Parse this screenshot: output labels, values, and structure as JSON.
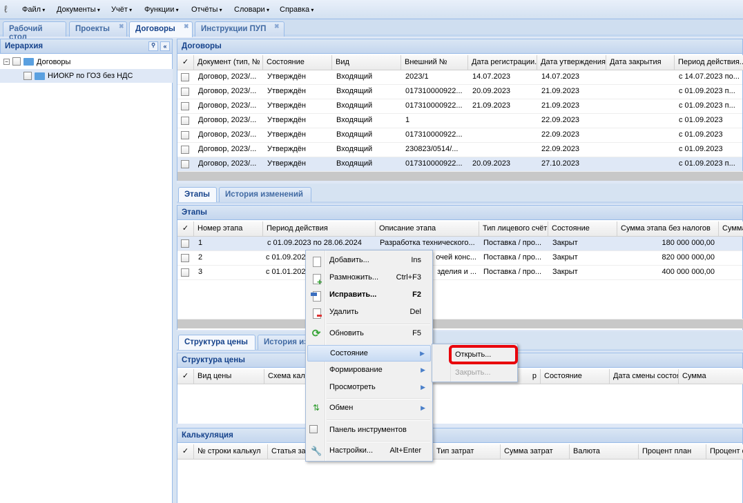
{
  "menubar": {
    "items": [
      "Файл",
      "Документы",
      "Учёт",
      "Функции",
      "Отчёты",
      "Словари",
      "Справка"
    ]
  },
  "tabs": [
    {
      "label": "Рабочий стол",
      "closable": false
    },
    {
      "label": "Проекты",
      "closable": true
    },
    {
      "label": "Договоры",
      "closable": true,
      "active": true
    },
    {
      "label": "Инструкции ПУП",
      "closable": true
    }
  ],
  "hierarchy": {
    "title": "Иерархия",
    "nodes": [
      {
        "label": "Договоры",
        "expanded": true
      },
      {
        "label": "НИОКР по ГОЗ без НДС"
      }
    ]
  },
  "contracts": {
    "title": "Договоры",
    "columns": [
      "✓",
      "Документ (тип, №",
      "Состояние",
      "Вид",
      "Внешний №",
      "Дата регистрации...",
      "Дата утверждения",
      "Дата закрытия",
      "Период действия..."
    ],
    "rows": [
      [
        "Договор, 2023/...",
        "Утверждён",
        "Входящий",
        "2023/1",
        "14.07.2023",
        "14.07.2023",
        "",
        "с 14.07.2023 по..."
      ],
      [
        "Договор, 2023/...",
        "Утверждён",
        "Входящий",
        "017310000922...",
        "20.09.2023",
        "21.09.2023",
        "",
        "с 01.09.2023 п..."
      ],
      [
        "Договор, 2023/...",
        "Утверждён",
        "Входящий",
        "017310000922...",
        "21.09.2023",
        "21.09.2023",
        "",
        "с 01.09.2023 п..."
      ],
      [
        "Договор, 2023/...",
        "Утверждён",
        "Входящий",
        "1",
        "",
        "22.09.2023",
        "",
        "с 01.09.2023"
      ],
      [
        "Договор, 2023/...",
        "Утверждён",
        "Входящий",
        "017310000922...",
        "",
        "22.09.2023",
        "",
        "с 01.09.2023"
      ],
      [
        "Договор, 2023/...",
        "Утверждён",
        "Входящий",
        "230823/0514/...",
        "",
        "22.09.2023",
        "",
        "с 01.09.2023"
      ],
      [
        "Договор, 2023/...",
        "Утверждён",
        "Входящий",
        "017310000922...",
        "20.09.2023",
        "27.10.2023",
        "",
        "с 01.09.2023 п..."
      ]
    ]
  },
  "stage_tabs": [
    "Этапы",
    "История изменений"
  ],
  "stages": {
    "title": "Этапы",
    "columns": [
      "✓",
      "Номер этапа",
      "Период действия",
      "Описание этапа",
      "Тип лицевого счёт",
      "Состояние",
      "Сумма этапа без налогов",
      "Сумма"
    ],
    "rows": [
      [
        "1",
        "с 01.09.2023 по 28.06.2024",
        "Разработка технического...",
        "Поставка / про...",
        "Закрыт",
        "180 000 000,00"
      ],
      [
        "2",
        "с 01.09.202",
        "очей конс...",
        "Поставка / про...",
        "Закрыт",
        "820 000 000,00"
      ],
      [
        "3",
        "с 01.01.202",
        "зделия и ...",
        "Поставка / про...",
        "Закрыт",
        "400 000 000,00"
      ]
    ]
  },
  "price_tabs": [
    "Структура цены",
    "История из"
  ],
  "price": {
    "title": "Структура цены",
    "columns": [
      "✓",
      "Вид цены",
      "Схема каль",
      "р",
      "Состояние",
      "Дата смены состоя",
      "Сумма"
    ]
  },
  "calc": {
    "title": "Калькуляция",
    "columns": [
      "✓",
      "№ строки калькул",
      "Статья затр",
      "Тип затрат",
      "Сумма затрат",
      "Валюта",
      "Процент план",
      "Процент ф"
    ]
  },
  "context_menu": {
    "items": [
      {
        "label": "Добавить...",
        "key": "Ins",
        "icon": "page-icon"
      },
      {
        "label": "Размножить...",
        "key": "Ctrl+F3",
        "icon": "page-add-icon"
      },
      {
        "label": "Исправить...",
        "key": "F2",
        "icon": "edit-icon",
        "bold": true
      },
      {
        "label": "Удалить",
        "key": "Del",
        "icon": "page-delete-icon"
      },
      {
        "label": "Обновить",
        "key": "F5",
        "icon": "refresh-icon"
      },
      {
        "label": "Состояние",
        "submenu": true,
        "highlighted": true
      },
      {
        "label": "Формирование",
        "submenu": true
      },
      {
        "label": "Просмотреть",
        "submenu": true
      },
      {
        "label": "Обмен",
        "submenu": true,
        "icon": "exchange-icon"
      },
      {
        "label": "Панель инструментов",
        "icon": "checkbox-icon"
      },
      {
        "label": "Настройки...",
        "key": "Alt+Enter",
        "icon": "wrench-icon"
      }
    ]
  },
  "submenu": {
    "items": [
      {
        "label": "Открыть...",
        "enabled": true,
        "highlight_color": "#e8000b"
      },
      {
        "label": "Закрыть...",
        "enabled": false
      }
    ]
  }
}
